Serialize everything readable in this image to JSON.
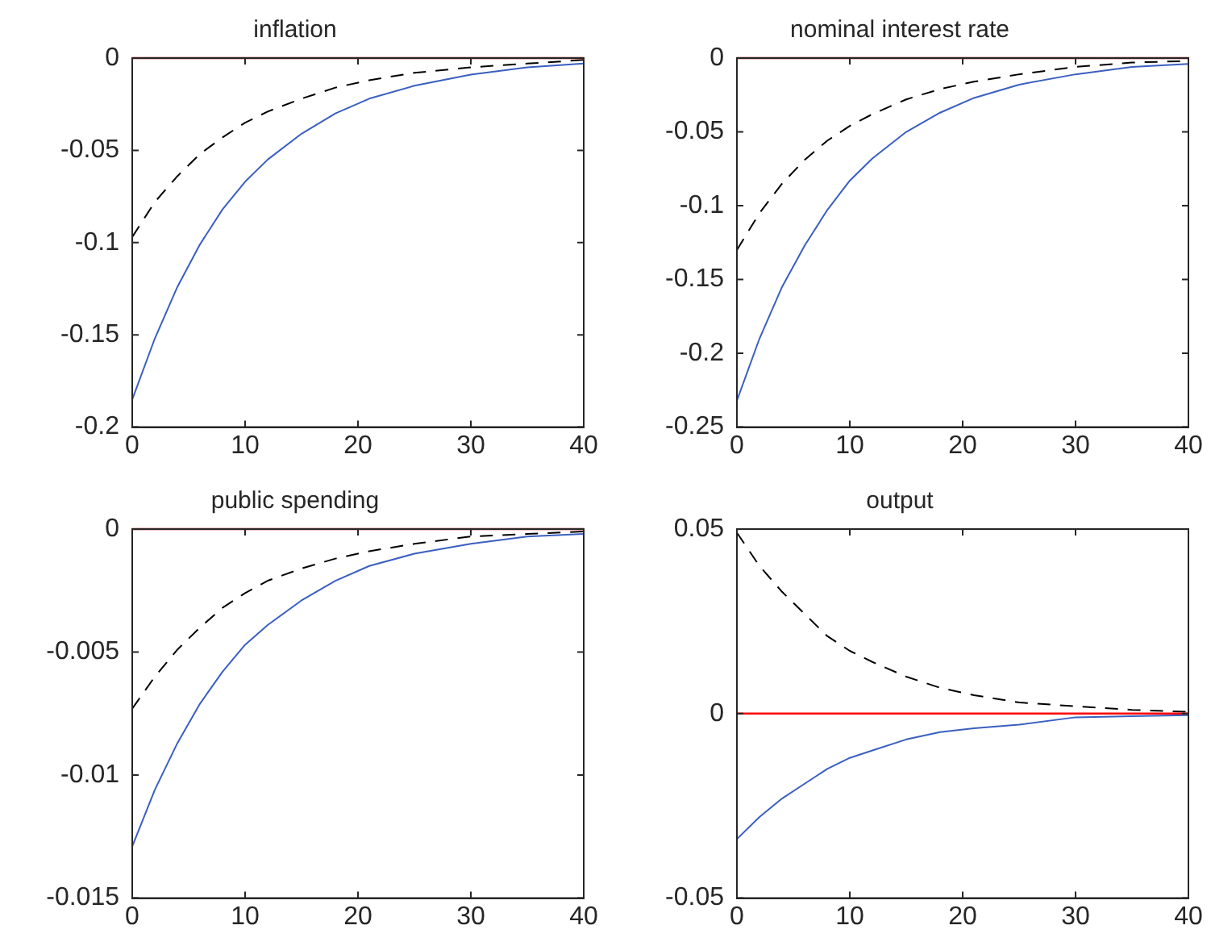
{
  "chart_data": [
    {
      "type": "line",
      "title": "inflation",
      "x": [
        0,
        2,
        4,
        6,
        8,
        10,
        12,
        15,
        18,
        21,
        25,
        30,
        35,
        40
      ],
      "xlim": [
        0,
        40
      ],
      "xticks": [
        0,
        10,
        20,
        30,
        40
      ],
      "ylim": [
        -0.2,
        0
      ],
      "yticks": [
        -0.2,
        -0.15,
        -0.1,
        -0.05,
        0
      ],
      "grid": false,
      "series": [
        {
          "color": "#3a5fc0",
          "line_style": "solid",
          "values": [
            -0.185,
            -0.152,
            -0.124,
            -0.101,
            -0.082,
            -0.067,
            -0.055,
            -0.041,
            -0.03,
            -0.022,
            -0.015,
            -0.009,
            -0.005,
            -0.003
          ]
        },
        {
          "color": "#000000",
          "line_style": "dashed",
          "values": [
            -0.097,
            -0.078,
            -0.064,
            -0.052,
            -0.043,
            -0.035,
            -0.029,
            -0.022,
            -0.016,
            -0.012,
            -0.008,
            -0.005,
            -0.003,
            -0.001
          ]
        }
      ],
      "ref_lines": [
        {
          "axis": "y",
          "value": 0,
          "color": "#ff0000"
        }
      ]
    },
    {
      "type": "line",
      "title": "nominal interest rate",
      "x": [
        0,
        2,
        4,
        6,
        8,
        10,
        12,
        15,
        18,
        21,
        25,
        30,
        35,
        40
      ],
      "xlim": [
        0,
        40
      ],
      "xticks": [
        0,
        10,
        20,
        30,
        40
      ],
      "ylim": [
        -0.25,
        0
      ],
      "yticks": [
        -0.25,
        -0.2,
        -0.15,
        -0.1,
        -0.05,
        0
      ],
      "grid": false,
      "series": [
        {
          "color": "#3a5fc0",
          "line_style": "solid",
          "values": [
            -0.232,
            -0.19,
            -0.155,
            -0.127,
            -0.103,
            -0.083,
            -0.068,
            -0.05,
            -0.037,
            -0.027,
            -0.018,
            -0.011,
            -0.006,
            -0.004
          ]
        },
        {
          "color": "#000000",
          "line_style": "dashed",
          "values": [
            -0.13,
            -0.105,
            -0.085,
            -0.069,
            -0.056,
            -0.046,
            -0.038,
            -0.028,
            -0.021,
            -0.016,
            -0.011,
            -0.006,
            -0.003,
            -0.002
          ]
        }
      ],
      "ref_lines": [
        {
          "axis": "y",
          "value": 0,
          "color": "#ff0000"
        }
      ]
    },
    {
      "type": "line",
      "title": "public spending",
      "x": [
        0,
        2,
        4,
        6,
        8,
        10,
        12,
        15,
        18,
        21,
        25,
        30,
        35,
        40
      ],
      "xlim": [
        0,
        40
      ],
      "xticks": [
        0,
        10,
        20,
        30,
        40
      ],
      "ylim": [
        -0.015,
        0
      ],
      "yticks": [
        -0.015,
        -0.01,
        -0.005,
        0
      ],
      "grid": false,
      "series": [
        {
          "color": "#3a5fc0",
          "line_style": "solid",
          "values": [
            -0.0129,
            -0.0106,
            -0.0087,
            -0.0071,
            -0.0058,
            -0.0047,
            -0.0039,
            -0.0029,
            -0.0021,
            -0.0015,
            -0.001,
            -0.0006,
            -0.0003,
            -0.0002
          ]
        },
        {
          "color": "#000000",
          "line_style": "dashed",
          "values": [
            -0.0073,
            -0.006,
            -0.0049,
            -0.004,
            -0.0032,
            -0.0026,
            -0.0021,
            -0.0016,
            -0.0012,
            -0.0009,
            -0.0006,
            -0.0003,
            -0.0002,
            -0.0001
          ]
        }
      ],
      "ref_lines": [
        {
          "axis": "y",
          "value": 0,
          "color": "#ff0000"
        }
      ]
    },
    {
      "type": "line",
      "title": "output",
      "x": [
        0,
        2,
        4,
        6,
        8,
        10,
        12,
        15,
        18,
        21,
        25,
        30,
        35,
        40
      ],
      "xlim": [
        0,
        40
      ],
      "xticks": [
        0,
        10,
        20,
        30,
        40
      ],
      "ylim": [
        -0.05,
        0.05
      ],
      "yticks": [
        -0.05,
        0,
        0.05
      ],
      "grid": false,
      "series": [
        {
          "color": "#3a5fc0",
          "line_style": "solid",
          "values": [
            -0.034,
            -0.028,
            -0.023,
            -0.019,
            -0.015,
            -0.012,
            -0.01,
            -0.007,
            -0.005,
            -0.004,
            -0.003,
            -0.001,
            -0.0007,
            -0.0004
          ]
        },
        {
          "color": "#000000",
          "line_style": "dashed",
          "values": [
            0.049,
            0.04,
            0.033,
            0.027,
            0.021,
            0.017,
            0.014,
            0.01,
            0.007,
            0.005,
            0.003,
            0.002,
            0.001,
            0.0005
          ]
        }
      ],
      "ref_lines": [
        {
          "axis": "y",
          "value": 0,
          "color": "#ff0000"
        }
      ]
    }
  ]
}
